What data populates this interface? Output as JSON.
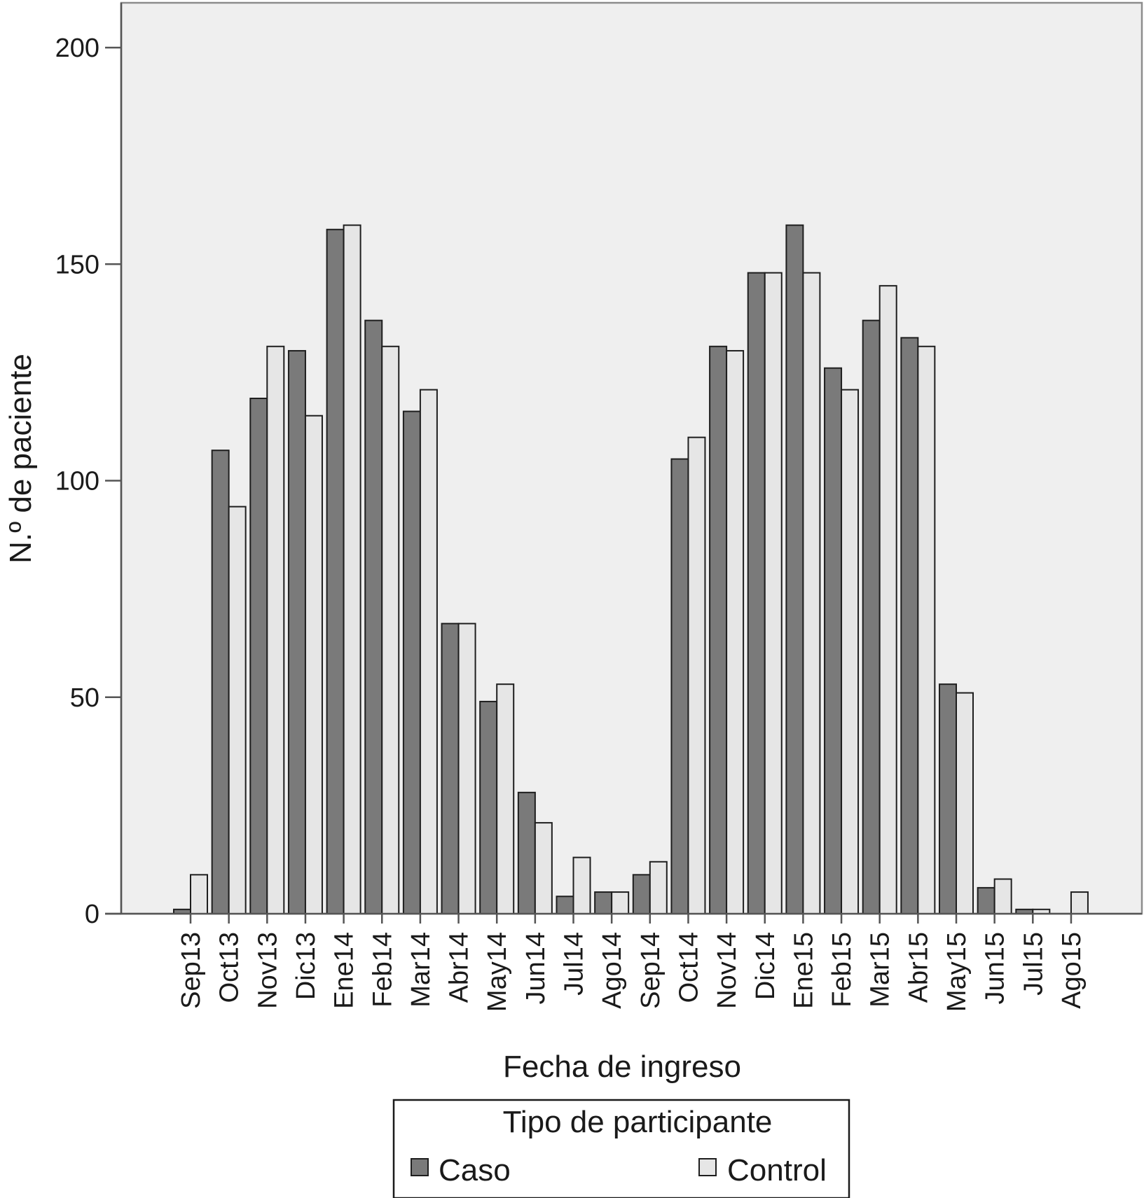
{
  "chart_data": {
    "type": "bar",
    "title": "",
    "xlabel": "Fecha de ingreso",
    "ylabel": "N.º de paciente",
    "ylim": [
      0,
      200
    ],
    "yticks": [
      0,
      50,
      100,
      150,
      200
    ],
    "grid": false,
    "categories": [
      "Sep13",
      "Oct13",
      "Nov13",
      "Dic13",
      "Ene14",
      "Feb14",
      "Mar14",
      "Abr14",
      "May14",
      "Jun14",
      "Jul14",
      "Ago14",
      "Sep14",
      "Oct14",
      "Nov14",
      "Dic14",
      "Ene15",
      "Feb15",
      "Mar15",
      "Abr15",
      "May15",
      "Jun15",
      "Jul15",
      "Ago15"
    ],
    "series": [
      {
        "name": "Caso",
        "color": "#7a7a7a",
        "values": [
          1,
          107,
          119,
          130,
          158,
          137,
          116,
          67,
          49,
          28,
          4,
          5,
          9,
          105,
          131,
          148,
          159,
          126,
          137,
          133,
          53,
          6,
          1,
          0
        ]
      },
      {
        "name": "Control",
        "color": "#e6e6e6",
        "values": [
          9,
          94,
          131,
          115,
          159,
          131,
          121,
          67,
          53,
          21,
          13,
          5,
          12,
          110,
          130,
          148,
          148,
          121,
          145,
          131,
          51,
          8,
          1,
          5
        ]
      }
    ],
    "legend": {
      "title": "Tipo de participante",
      "placement": "bottom"
    },
    "colors": {
      "plot_bg": "#efefef",
      "frame": "#8c8c8c",
      "bar_stroke": "#1e1e1e"
    }
  }
}
